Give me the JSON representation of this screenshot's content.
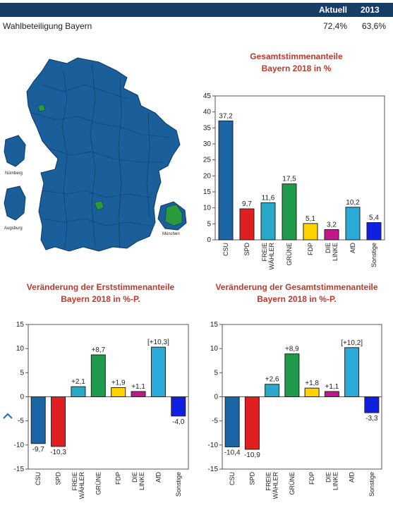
{
  "header": {
    "col1": "Aktuell",
    "col2": "2013"
  },
  "turnout": {
    "label": "Wahlbeteiligung Bayern",
    "current": "72,4%",
    "previous": "63,6%"
  },
  "map": {
    "labels": {
      "nuernberg": "Nürnberg",
      "augsburg": "Augsburg",
      "muenchen": "München"
    },
    "colors": {
      "csu": "#1a5e9a",
      "gruene": "#2a9a3a"
    }
  },
  "charts": {
    "total": {
      "title1": "Gesamtstimmenanteile",
      "title2": "Bayern 2018 in %"
    },
    "erst": {
      "title1": "Veränderung der Erststimmenanteile",
      "title2": "Bayern 2018 in %-P."
    },
    "gesamt": {
      "title1": "Veränderung der Gesamtstimmenanteile",
      "title2": "Bayern 2018 in %-P."
    }
  },
  "chart_data": [
    {
      "type": "bar",
      "categories": [
        "CSU",
        "SPD",
        "FREIE WÄHLER",
        "GRÜNE",
        "FDP",
        "DIE LINKE",
        "AfD",
        "Sonstige"
      ],
      "values": [
        37.2,
        9.7,
        11.6,
        17.5,
        5.1,
        3.2,
        10.2,
        5.4
      ],
      "labels": [
        "37,2",
        "9,7",
        "11,6",
        "17,5",
        "5,1",
        "3,2",
        "10,2",
        "5,4"
      ],
      "yticks": [
        "0",
        "5",
        "10",
        "15",
        "20",
        "25",
        "30",
        "35",
        "40",
        "45"
      ],
      "ylim": [
        0,
        45
      ]
    },
    {
      "type": "bar",
      "categories": [
        "CSU",
        "SPD",
        "FREIE WÄHLER",
        "GRÜNE",
        "FDP",
        "DIE LINKE",
        "AfD",
        "Sonstige"
      ],
      "values": [
        -9.7,
        -10.3,
        2.1,
        8.7,
        1.9,
        1.1,
        10.3,
        -4.0
      ],
      "labels": [
        "-9,7",
        "-10,3",
        "+2,1",
        "+8,7",
        "+1,9",
        "+1,1",
        "[+10,3]",
        "-4,0"
      ],
      "yticks": [
        "-15",
        "-10",
        "-5",
        "0",
        "5",
        "10",
        "15"
      ],
      "ylim": [
        -15,
        15
      ]
    },
    {
      "type": "bar",
      "categories": [
        "CSU",
        "SPD",
        "FREIE WÄHLER",
        "GRÜNE",
        "FDP",
        "DIE LINKE",
        "AfD",
        "Sonstige"
      ],
      "values": [
        -10.4,
        -10.9,
        2.6,
        8.9,
        1.8,
        1.1,
        10.2,
        -3.3
      ],
      "labels": [
        "-10,4",
        "-10,9",
        "+2,6",
        "+8,9",
        "+1,8",
        "+1,1",
        "[+10,2]",
        "-3,3"
      ],
      "yticks": [
        "-15",
        "-10",
        "-5",
        "0",
        "5",
        "10",
        "15"
      ],
      "ylim": [
        -15,
        15
      ]
    }
  ],
  "party_colors": [
    "#1b64a5",
    "#e02020",
    "#2aa8c8",
    "#1e9a4a",
    "#ffd200",
    "#c01888",
    "#2aaad6",
    "#1020e0"
  ]
}
